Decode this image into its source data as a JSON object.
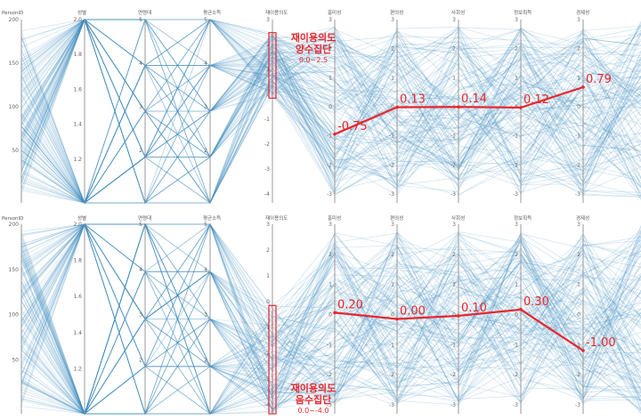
{
  "chart_data": [
    {
      "type": "parallel_coordinates",
      "axes": [
        {
          "name": "PersonID",
          "min": 0,
          "max": 200,
          "ticks": [
            "200",
            "150",
            "100",
            "50",
            ""
          ]
        },
        {
          "name": "성별",
          "min": 1,
          "max": 2,
          "ticks": [
            "2.0",
            "1.8",
            "1.6",
            "1.4",
            "1.2",
            ""
          ]
        },
        {
          "name": "연령대",
          "min": 1,
          "max": 5,
          "ticks": [
            "5",
            "4",
            "3",
            "2",
            ""
          ]
        },
        {
          "name": "평균소득",
          "min": 1,
          "max": 5,
          "ticks": [
            "5",
            "4",
            "3",
            "2",
            ""
          ]
        },
        {
          "name": "재이용의도",
          "min": -4,
          "max": 3,
          "ticks": [
            "3",
            "2",
            "1",
            "0",
            "-1",
            "-2",
            "-3",
            "-4"
          ]
        },
        {
          "name": "흥미성",
          "min": -3,
          "max": 3,
          "ticks": [
            "3",
            "2",
            "1",
            "0",
            "-1",
            "-2",
            "-3"
          ]
        },
        {
          "name": "편의성",
          "min": -3,
          "max": 3,
          "ticks": [
            "3",
            "2",
            "1",
            "0",
            "-1",
            "-2",
            "-3"
          ]
        },
        {
          "name": "사회성",
          "min": -3,
          "max": 3,
          "ticks": [
            "3",
            "2",
            "1",
            "0",
            "-1",
            "-2",
            "-3"
          ]
        },
        {
          "name": "정보획득",
          "min": -3,
          "max": 3,
          "ticks": [
            "3",
            "2",
            "1",
            "0",
            "-1",
            "-2",
            "-3"
          ]
        },
        {
          "name": "경제성",
          "min": -3,
          "max": 3,
          "ticks": [
            "3",
            "2",
            "1",
            "0",
            "-1",
            "-2",
            "-3"
          ]
        }
      ],
      "group": {
        "line1": "재이용의도",
        "line2": "양수집단",
        "range": "0.0~2.5"
      },
      "mean_line": {
        "axes": [
          "흥미성",
          "편의성",
          "사회성",
          "정보획득",
          "경제성"
        ],
        "values": [
          -0.75,
          0.13,
          0.14,
          0.12,
          0.79
        ],
        "labels": [
          "-0.75",
          "0.13",
          "0.14",
          "0.12",
          "0.79"
        ]
      },
      "brush": {
        "axis": "재이용의도",
        "from": 0.0,
        "to": 2.5
      }
    },
    {
      "type": "parallel_coordinates",
      "axes": [
        {
          "name": "PersonID",
          "min": 0,
          "max": 200,
          "ticks": [
            "200",
            "150",
            "100",
            "50",
            ""
          ]
        },
        {
          "name": "성별",
          "min": 1,
          "max": 2,
          "ticks": [
            "2.0",
            "1.8",
            "1.6",
            "1.4",
            "1.2",
            ""
          ]
        },
        {
          "name": "연령대",
          "min": 1,
          "max": 5,
          "ticks": [
            "5",
            "4",
            "3",
            "2",
            ""
          ]
        },
        {
          "name": "평균소득",
          "min": 1,
          "max": 5,
          "ticks": [
            "5",
            "4",
            "3",
            "2",
            ""
          ]
        },
        {
          "name": "재이용의도",
          "min": -4,
          "max": 3,
          "ticks": [
            "3",
            "2",
            "1",
            "0",
            "-1",
            "-2",
            "-3",
            "-4"
          ]
        },
        {
          "name": "흥미성",
          "min": -3,
          "max": 3,
          "ticks": [
            "3",
            "2",
            "1",
            "0",
            "-1",
            "-2",
            "-3"
          ]
        },
        {
          "name": "편의성",
          "min": -3,
          "max": 3,
          "ticks": [
            "3",
            "2",
            "1",
            "0",
            "-1",
            "-2",
            "-3"
          ]
        },
        {
          "name": "사회성",
          "min": -3,
          "max": 3,
          "ticks": [
            "3",
            "2",
            "1",
            "0",
            "-1",
            "-2",
            "-3"
          ]
        },
        {
          "name": "정보획득",
          "min": -3,
          "max": 3,
          "ticks": [
            "3",
            "2",
            "1",
            "0",
            "-1",
            "-2",
            "-3"
          ]
        },
        {
          "name": "경제성",
          "min": -3,
          "max": 3,
          "ticks": [
            "3",
            "2",
            "1",
            "0",
            "-1",
            "-2",
            "-3"
          ]
        }
      ],
      "group": {
        "line1": "재이용의도",
        "line2": "음수집단",
        "range": "0.0~-4.0"
      },
      "mean_line": {
        "axes": [
          "흥미성",
          "편의성",
          "사회성",
          "정보획득",
          "경제성"
        ],
        "values": [
          0.2,
          0.0,
          0.1,
          0.3,
          -1.0
        ],
        "labels": [
          "0.20",
          "0.00",
          "0.10",
          "0.30",
          "-1.00"
        ]
      },
      "brush": {
        "axis": "재이용의도",
        "from": -4.0,
        "to": 0.0
      }
    }
  ],
  "colors": {
    "polylines": "#3f8fbf",
    "highlight": "#e8262d",
    "axis": "#9a9a9a"
  }
}
